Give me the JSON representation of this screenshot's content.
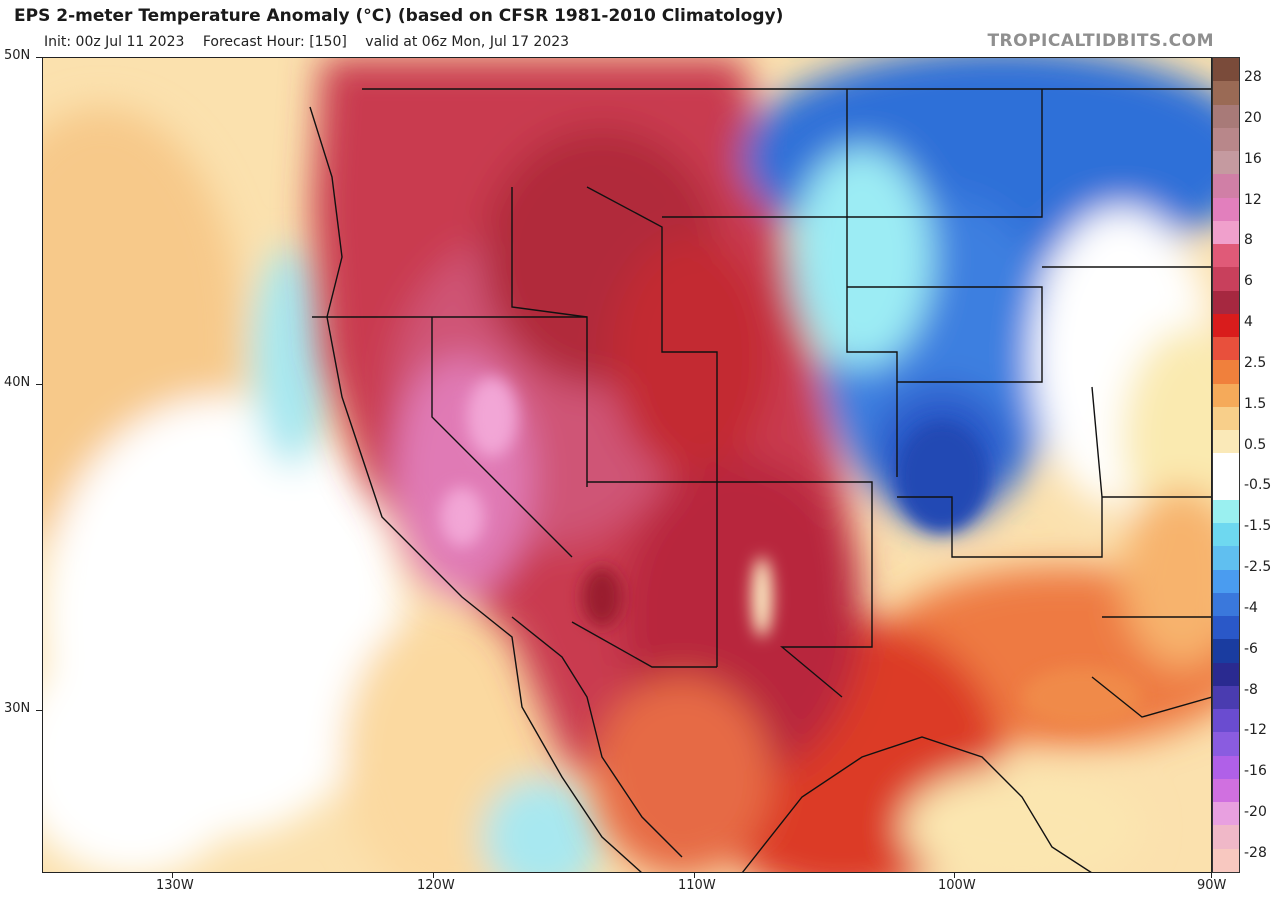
{
  "header": {
    "title": "EPS 2-meter Temperature Anomaly (°C) (based on CFSR 1981-2010 Climatology)",
    "init": "Init: 00z Jul 11 2023",
    "forecast_hour": "Forecast Hour: [150]",
    "valid": "valid at 06z Mon, Jul 17 2023",
    "brand": "TROPICALTIDBITS.COM"
  },
  "axes": {
    "lat_labels": [
      "50N",
      "40N",
      "30N"
    ],
    "lon_labels": [
      "130W",
      "120W",
      "110W",
      "100W",
      "90W"
    ]
  },
  "colorbar": {
    "labels": [
      "28",
      "20",
      "16",
      "12",
      "8",
      "6",
      "4",
      "2.5",
      "1.5",
      "0.5",
      "-0.5",
      "-1.5",
      "-2.5",
      "-4",
      "-6",
      "-8",
      "-12",
      "-16",
      "-20",
      "-28"
    ],
    "colors": [
      "#7a4b3a",
      "#9a6a55",
      "#a87a78",
      "#b8878a",
      "#c59aa0",
      "#d07fa6",
      "#e27fbd",
      "#f0a0cc",
      "#e05a78",
      "#c8405c",
      "#a62840",
      "#d91c1c",
      "#e8503c",
      "#f0803c",
      "#f5aa5a",
      "#f8cf8a",
      "#fae9b8",
      "#ffffff",
      "#ffffff",
      "#9af0f0",
      "#6ed8f0",
      "#60bff0",
      "#4a9cf0",
      "#3a78dc",
      "#2a58c8",
      "#1a3ca0",
      "#2a2a90",
      "#4a3cb0",
      "#6a4cd0",
      "#8a5ce0",
      "#b060e8",
      "#d070e0",
      "#e8a0e0",
      "#f0b8c8",
      "#f8c8c0"
    ]
  }
}
